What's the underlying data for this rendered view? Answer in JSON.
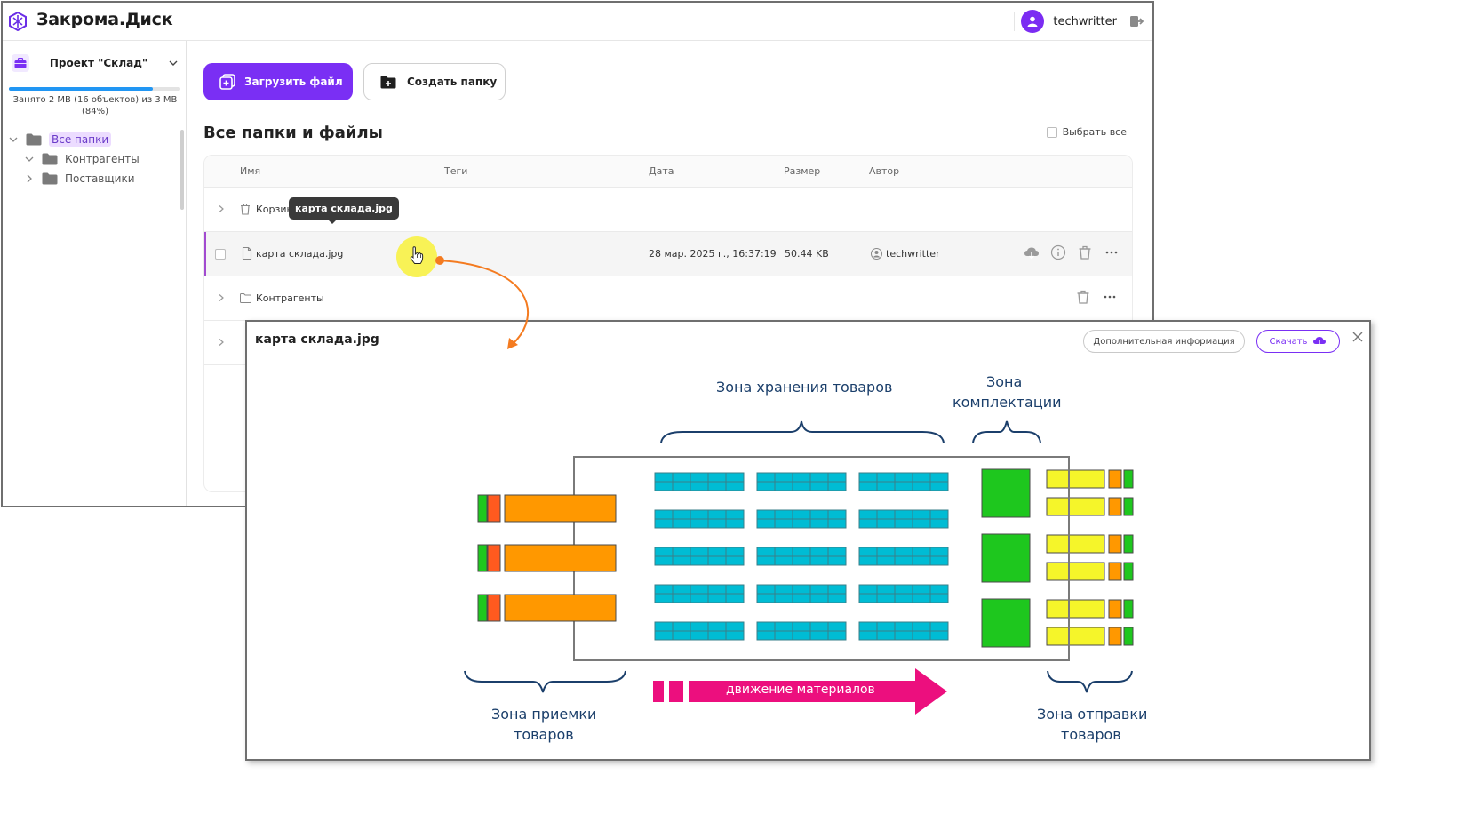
{
  "app": {
    "title": "Закрома.Диск"
  },
  "user": {
    "name": "techwritter"
  },
  "sidebar": {
    "project_name": "Проект \"Склад\"",
    "usage_text": "Занято 2 MB (16 объектов) из 3 MB (84%)",
    "usage_fraction": 0.84,
    "tree": {
      "root": "Все папки",
      "children": [
        "Контрагенты",
        "Поставщики"
      ]
    }
  },
  "toolbar": {
    "upload_label": "Загрузить файл",
    "create_folder_label": "Создать папку"
  },
  "files": {
    "title": "Все папки и файлы",
    "select_all": "Выбрать все",
    "columns": {
      "name": "Имя",
      "tags": "Теги",
      "date": "Дата",
      "size": "Размер",
      "author": "Автор"
    },
    "rows": [
      {
        "name": "Корзина"
      },
      {
        "name": "карта склада.jpg",
        "date": "28 мар. 2025 г., 16:37:19",
        "size": "50.44 KB",
        "author": "techwritter"
      },
      {
        "name": "Контрагенты"
      }
    ],
    "tooltip": "карта склада.jpg"
  },
  "preview": {
    "title": "карта склада.jpg",
    "info_button": "Дополнительная информация",
    "download_button": "Скачать",
    "map": {
      "storage_zone": "Зона хранения товаров",
      "picking_zone_line1": "Зона",
      "picking_zone_line2": "комплектации",
      "receiving_zone_line1": "Зона приемки",
      "receiving_zone_line2": "товаров",
      "shipping_zone_line1": "Зона отправки",
      "shipping_zone_line2": "товаров",
      "flow_label": "движение материалов"
    }
  },
  "icons": {
    "logo": "logo-hex-icon",
    "avatar": "user-avatar-icon",
    "logout": "logout-icon",
    "project": "briefcase-icon",
    "folder": "folder-icon",
    "file": "file-icon",
    "trash": "trash-icon",
    "download": "cloud-download-icon",
    "info": "info-icon",
    "more": "more-dots-icon",
    "close": "close-icon",
    "cursor": "hand-pointer-icon"
  },
  "colors": {
    "accent": "#7a2ff4",
    "usage_bar": "#2196f3",
    "shelf_cyan": "#00bcd4",
    "receiving_orange": "#ff9800",
    "picking_green": "#1ec71e",
    "shipping_yellow": "#f5f52a",
    "flow_magenta": "#ec0f7e",
    "annotation_orange": "#f47b20",
    "cursor_highlight": "#f8f256"
  }
}
